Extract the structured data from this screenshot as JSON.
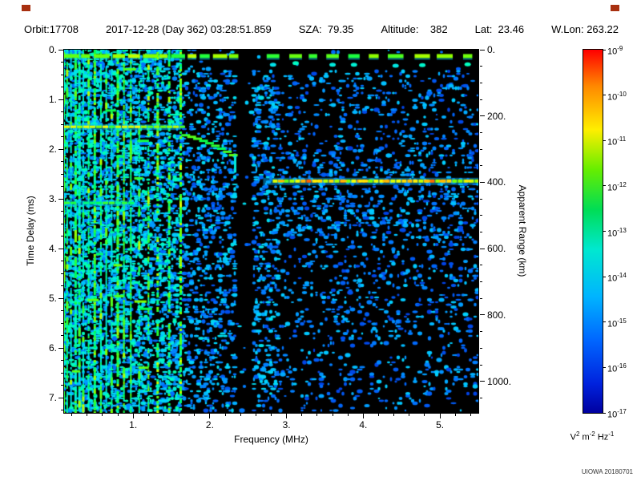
{
  "header": {
    "segments": [
      "Orbit:17708",
      "2017-12-28 (Day 362) 03:28:51.859",
      "SZA:  79.35",
      "Altitude:    382",
      "Lat:  23.46",
      "W.Lon: 263.22"
    ]
  },
  "footer": {
    "credit": "UIOWA 20180701"
  },
  "chart_data": {
    "type": "heatmap",
    "xlabel": "Frequency (MHz)",
    "ylabel_left": "Time Delay (ms)",
    "ylabel_right": "Apparent Range (km)",
    "x_range_mhz": [
      0.1,
      5.5
    ],
    "y_range_ms": [
      0.0,
      7.3
    ],
    "km_per_ms": 150,
    "x_ticks": [
      {
        "v": 1,
        "label": "1."
      },
      {
        "v": 2,
        "label": "2."
      },
      {
        "v": 3,
        "label": "3."
      },
      {
        "v": 4,
        "label": "4."
      },
      {
        "v": 5,
        "label": "5."
      }
    ],
    "x_minor_step_mhz": 0.2,
    "y_ticks": [
      {
        "v": 0,
        "label": "0."
      },
      {
        "v": 1,
        "label": "1."
      },
      {
        "v": 2,
        "label": "2."
      },
      {
        "v": 3,
        "label": "3."
      },
      {
        "v": 4,
        "label": "4."
      },
      {
        "v": 5,
        "label": "5."
      },
      {
        "v": 6,
        "label": "6."
      },
      {
        "v": 7,
        "label": "7."
      }
    ],
    "y_minor_step_ms": 0.25,
    "right_ticks": [
      {
        "km": 0,
        "label": "0."
      },
      {
        "km": 200,
        "label": "200."
      },
      {
        "km": 400,
        "label": "400."
      },
      {
        "km": 600,
        "label": "600."
      },
      {
        "km": 800,
        "label": "800."
      },
      {
        "km": 1000,
        "label": "1000."
      }
    ],
    "right_minor_step_km": 50,
    "colorbar": {
      "scale": "log",
      "tick_exponents": [
        -9,
        -10,
        -11,
        -12,
        -13,
        -14,
        -15,
        -16,
        -17
      ],
      "unit_parts": [
        {
          "t": "V"
        },
        {
          "e": "2"
        },
        {
          "t": " m"
        },
        {
          "e": "-2"
        },
        {
          "t": " Hz"
        },
        {
          "e": "-1"
        }
      ],
      "gradient": [
        "#ff0000 0%",
        "#ff8800 10%",
        "#ffee00 22%",
        "#66ee00 33%",
        "#00dd55 44%",
        "#00e8d0 55%",
        "#00b4ff 68%",
        "#0066ff 80%",
        "#0022dd 92%",
        "#0000a0 100%"
      ]
    },
    "features": {
      "seed": 1234567,
      "noise": {
        "left_density": 0.4,
        "mid_density": 0.25,
        "right_density": 0.13
      },
      "dark_column_mhz": [
        2.33,
        2.56
      ],
      "transmit_pulse_ms": 0.12,
      "vertical_lines_mhz": [
        0.1,
        0.14,
        0.19,
        0.25,
        0.3,
        0.35,
        0.42,
        0.5,
        0.58,
        0.65,
        0.72,
        0.8,
        0.88,
        0.97,
        1.08,
        1.2,
        1.32,
        1.47,
        1.62
      ],
      "horizontal_lines": [
        {
          "ms": 1.55,
          "f0": 0.1,
          "f1": 1.62,
          "strength": 0.82
        },
        {
          "ms": 3.08,
          "f0": 0.1,
          "f1": 0.95,
          "strength": 0.7
        }
      ],
      "cusp_trace": {
        "f0": 1.68,
        "f1": 2.3,
        "ms0": 1.72,
        "ms1": 2.12
      },
      "surface_line": {
        "ms": 2.64,
        "f0": 2.82,
        "f1": 5.5,
        "strength": 0.88
      },
      "bright_dash_count": 14
    }
  }
}
